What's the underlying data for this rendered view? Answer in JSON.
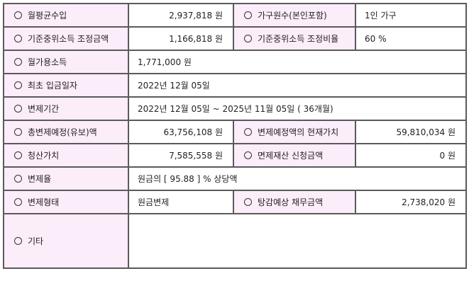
{
  "rows": [
    {
      "label1": "월평균수입",
      "value1": "2,937,818 원",
      "label2": "가구원수(본인포함)",
      "value2": "1인 가구"
    },
    {
      "label1": "기준중위소득 조정금액",
      "value1": "1,166,818 원",
      "label2": "기준중위소득 조정비율",
      "value2": "60 %"
    },
    {
      "label1": "월가용소득",
      "value1": "1,771,000 원"
    },
    {
      "label1": "최초 입금일자",
      "value1": "2022년 12월 05일"
    },
    {
      "label1": "변제기간",
      "value1": "2022년 12월 05일 ~ 2025년 11월 05일 ( 36개월)"
    },
    {
      "label1": "총변제예정(유보)액",
      "value1": "63,756,108 원",
      "label2": "변제예정액의 현재가치",
      "value2": "59,810,034 원"
    },
    {
      "label1": "청산가치",
      "value1": "7,585,558 원",
      "label2": "면제재산 신청금액",
      "value2": "0 원"
    },
    {
      "label1": "변제율",
      "value1": "원금의 [ 95.88 ] % 상당액"
    },
    {
      "label1": "변제형태",
      "value1": "원금변제",
      "label2": "탕감예상 채무금액",
      "value2": "2,738,020 원"
    },
    {
      "label1": "기타",
      "value1": ""
    }
  ],
  "colors": {
    "label_bg": "#fcedfb",
    "border": "#5a5a5a"
  }
}
